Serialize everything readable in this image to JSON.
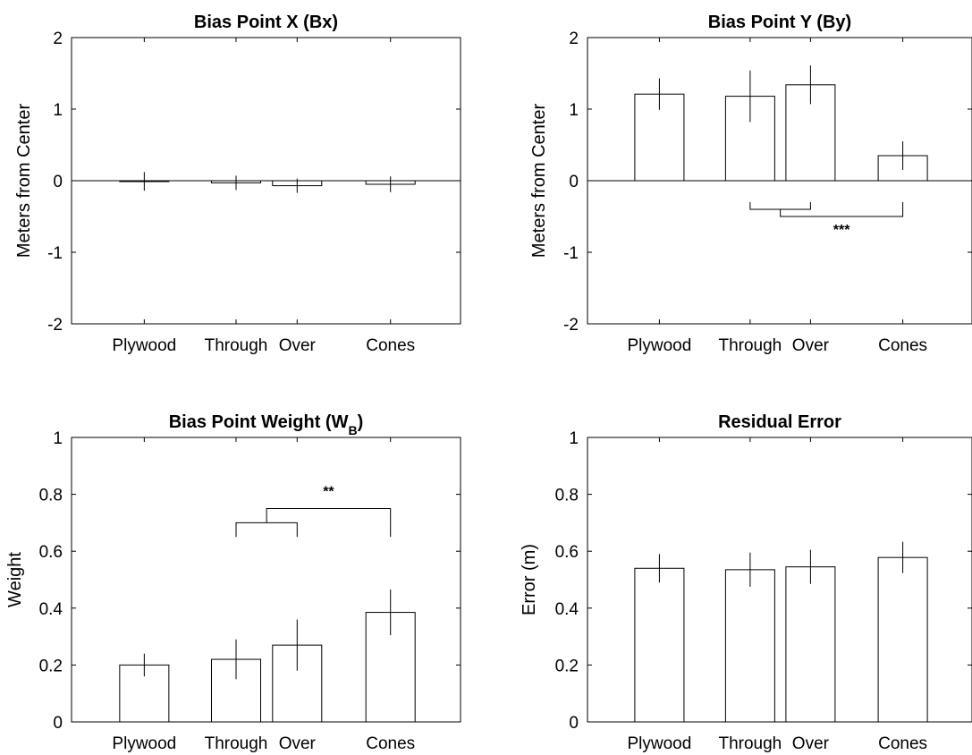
{
  "chart_data": [
    {
      "type": "bar",
      "title": "Bias Point X (Bx)",
      "title_sub": "",
      "ylabel": "Meters from Center",
      "ylim": [
        -2,
        2
      ],
      "yticks": [
        -2,
        -1,
        0,
        1,
        2
      ],
      "tick_labels": [
        "Plywood",
        "Through",
        "Over",
        "Cones"
      ],
      "bars": [
        {
          "label": "Plywood",
          "value": -0.01,
          "err": 0.13
        },
        {
          "label": "Through",
          "value": -0.03,
          "err": 0.1
        },
        {
          "label": "Over",
          "value": -0.07,
          "err": 0.1
        },
        {
          "label": "Cones",
          "value": -0.05,
          "err": 0.11
        }
      ],
      "zero_line": true,
      "brackets": []
    },
    {
      "type": "bar",
      "title": "Bias Point Y (By)",
      "title_sub": "",
      "ylabel": "Meters from Center",
      "ylim": [
        -2,
        2
      ],
      "yticks": [
        -2,
        -1,
        0,
        1,
        2
      ],
      "tick_labels": [
        "Plywood",
        "Through",
        "Over",
        "Cones"
      ],
      "bars": [
        {
          "label": "Plywood",
          "value": 1.21,
          "err": 0.22
        },
        {
          "label": "Through",
          "value": 1.18,
          "err": 0.36
        },
        {
          "label": "Over",
          "value": 1.34,
          "err": 0.27
        },
        {
          "label": "Cones",
          "value": 0.35,
          "err": 0.2
        }
      ],
      "zero_line": true,
      "brackets": [
        {
          "label": "***",
          "direction": "down",
          "inner_y": -0.4,
          "outer_y": -0.5,
          "inner_from": 1,
          "inner_to": 2,
          "outer_to": 3,
          "outer_end_y": -0.3
        }
      ]
    },
    {
      "type": "bar",
      "title": "Bias Point Weight (W",
      "title_sub": "B",
      "title_end": ")",
      "ylabel": "Weight",
      "ylim": [
        0,
        1
      ],
      "yticks": [
        0,
        0.2,
        0.4,
        0.6,
        0.8,
        1
      ],
      "tick_labels": [
        "Plywood",
        "Through",
        "Over",
        "Cones"
      ],
      "bars": [
        {
          "label": "Plywood",
          "value": 0.2,
          "err": 0.04
        },
        {
          "label": "Through",
          "value": 0.22,
          "err": 0.07
        },
        {
          "label": "Over",
          "value": 0.27,
          "err": 0.09
        },
        {
          "label": "Cones",
          "value": 0.385,
          "err": 0.08
        }
      ],
      "zero_line": false,
      "brackets": [
        {
          "label": "**",
          "direction": "up",
          "inner_y": 0.7,
          "outer_y": 0.75,
          "inner_from": 1,
          "inner_to": 2,
          "outer_to": 3,
          "outer_end_y": 0.65,
          "inner_end_y": 0.65
        }
      ]
    },
    {
      "type": "bar",
      "title": "Residual Error",
      "title_sub": "",
      "ylabel": "Error (m)",
      "ylim": [
        0,
        1
      ],
      "yticks": [
        0,
        0.2,
        0.4,
        0.6,
        0.8,
        1
      ],
      "tick_labels": [
        "Plywood",
        "Through",
        "Over",
        "Cones"
      ],
      "bars": [
        {
          "label": "Plywood",
          "value": 0.54,
          "err": 0.05
        },
        {
          "label": "Through",
          "value": 0.535,
          "err": 0.06
        },
        {
          "label": "Over",
          "value": 0.545,
          "err": 0.06
        },
        {
          "label": "Cones",
          "value": 0.578,
          "err": 0.055
        }
      ],
      "zero_line": false,
      "brackets": []
    }
  ]
}
